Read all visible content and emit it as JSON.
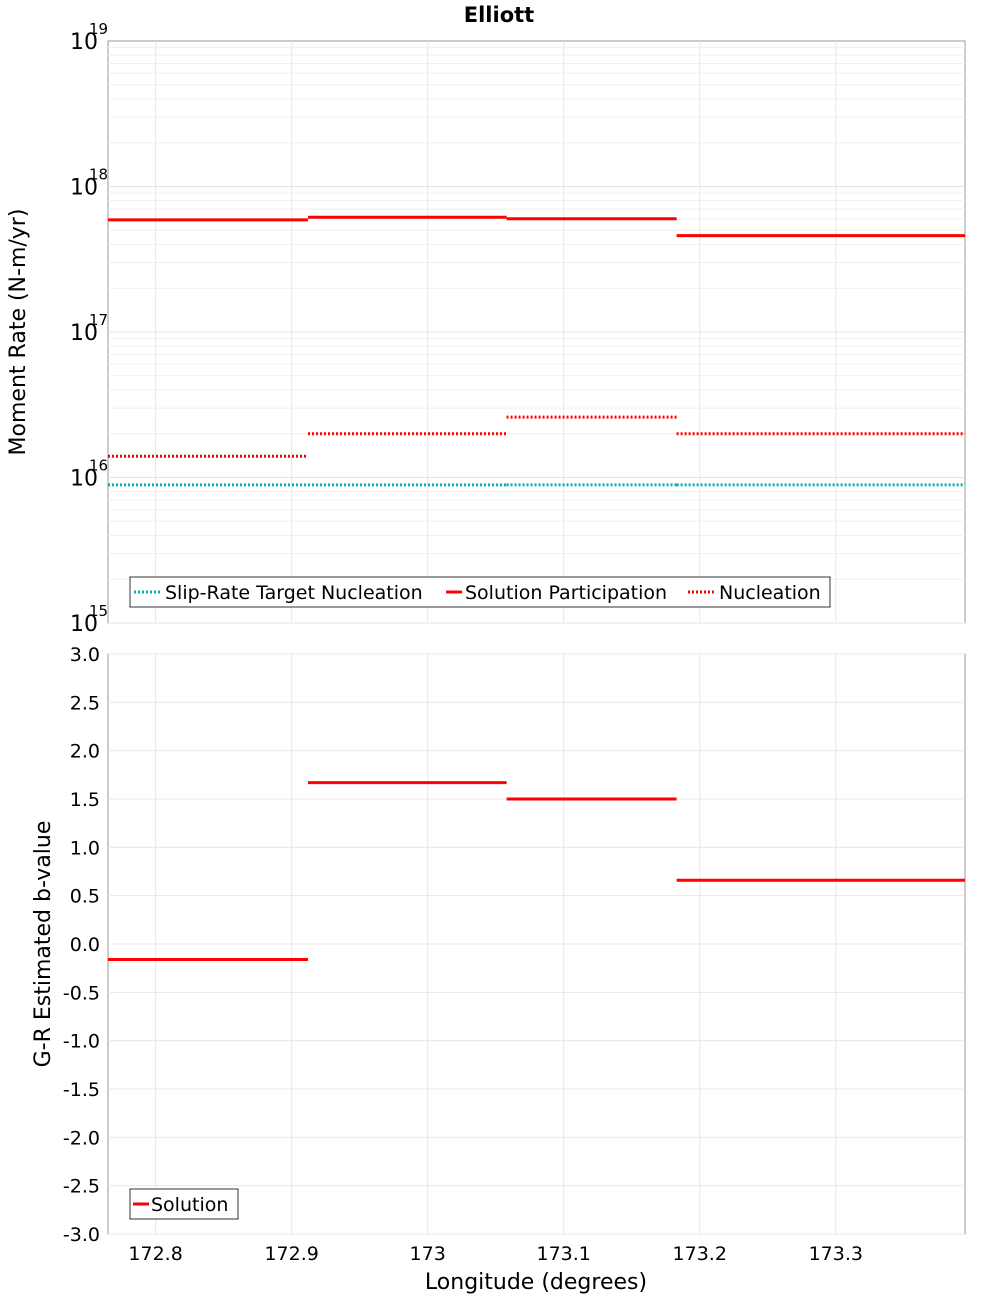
{
  "chart_data": [
    {
      "type": "line",
      "title": "Elliott",
      "ylabel": "Moment Rate (N-m/yr)",
      "xlabel": "",
      "yscale": "log",
      "ylim": [
        1000000000000000.0,
        1e+19
      ],
      "xlim": [
        172.765,
        173.395
      ],
      "x_ticks": [
        "172.8",
        "172.9",
        "173",
        "173.1",
        "173.2",
        "173.3"
      ],
      "x_tick_values": [
        172.8,
        172.9,
        173.0,
        173.1,
        173.2,
        173.3
      ],
      "y_ticks": [
        {
          "value": 1000000000000000.0,
          "base": "10",
          "exp": "15"
        },
        {
          "value": 1e+16,
          "base": "10",
          "exp": "16"
        },
        {
          "value": 1e+17,
          "base": "10",
          "exp": "17"
        },
        {
          "value": 1e+18,
          "base": "10",
          "exp": "18"
        },
        {
          "value": 1e+19,
          "base": "10",
          "exp": "19"
        }
      ],
      "grid": true,
      "legend_position": "bottom-left",
      "series": [
        {
          "name": "Slip-Rate Target Nucleation",
          "color": "#00b2b2",
          "style": "dotted",
          "segments": [
            {
              "x": [
                172.765,
                172.912
              ],
              "y": 8900000000000000.0
            },
            {
              "x": [
                172.912,
                173.058
              ],
              "y": 8900000000000000.0
            },
            {
              "x": [
                173.058,
                173.183
              ],
              "y": 8900000000000000.0
            },
            {
              "x": [
                173.183,
                173.395
              ],
              "y": 8900000000000000.0
            }
          ]
        },
        {
          "name": "Solution Participation",
          "color": "#ff0000",
          "style": "solid",
          "segments": [
            {
              "x": [
                172.765,
                172.912
              ],
              "y": 5.9e+17
            },
            {
              "x": [
                172.912,
                173.058
              ],
              "y": 6.15e+17
            },
            {
              "x": [
                173.058,
                173.183
              ],
              "y": 6e+17
            },
            {
              "x": [
                173.183,
                173.395
              ],
              "y": 4.6e+17
            }
          ]
        },
        {
          "name": "Nucleation",
          "color": "#ff0000",
          "style": "dotted",
          "segments": [
            {
              "x": [
                172.765,
                172.912
              ],
              "y": 1.4e+16
            },
            {
              "x": [
                172.912,
                173.058
              ],
              "y": 2e+16
            },
            {
              "x": [
                173.058,
                173.183
              ],
              "y": 2.6e+16
            },
            {
              "x": [
                173.183,
                173.395
              ],
              "y": 2e+16
            }
          ]
        }
      ]
    },
    {
      "type": "line",
      "title": "",
      "ylabel": "G-R Estimated b-value",
      "xlabel": "Longitude (degrees)",
      "ylim": [
        -3.0,
        3.0
      ],
      "xlim": [
        172.765,
        173.395
      ],
      "x_ticks": [
        "172.8",
        "172.9",
        "173",
        "173.1",
        "173.2",
        "173.3"
      ],
      "x_tick_values": [
        172.8,
        172.9,
        173.0,
        173.1,
        173.2,
        173.3
      ],
      "y_ticks": [
        "3.0",
        "2.5",
        "2.0",
        "1.5",
        "1.0",
        "0.5",
        "0.0",
        "-0.5",
        "-1.0",
        "-1.5",
        "-2.0",
        "-2.5",
        "-3.0"
      ],
      "y_tick_values": [
        3.0,
        2.5,
        2.0,
        1.5,
        1.0,
        0.5,
        0.0,
        -0.5,
        -1.0,
        -1.5,
        -2.0,
        -2.5,
        -3.0
      ],
      "grid": true,
      "legend_position": "bottom-left",
      "series": [
        {
          "name": "Solution",
          "color": "#ff0000",
          "style": "solid",
          "segments": [
            {
              "x": [
                172.765,
                172.912
              ],
              "y": -0.16
            },
            {
              "x": [
                172.912,
                173.058
              ],
              "y": 1.67
            },
            {
              "x": [
                173.058,
                173.183
              ],
              "y": 1.5
            },
            {
              "x": [
                173.183,
                173.395
              ],
              "y": 0.66
            }
          ]
        }
      ]
    }
  ]
}
